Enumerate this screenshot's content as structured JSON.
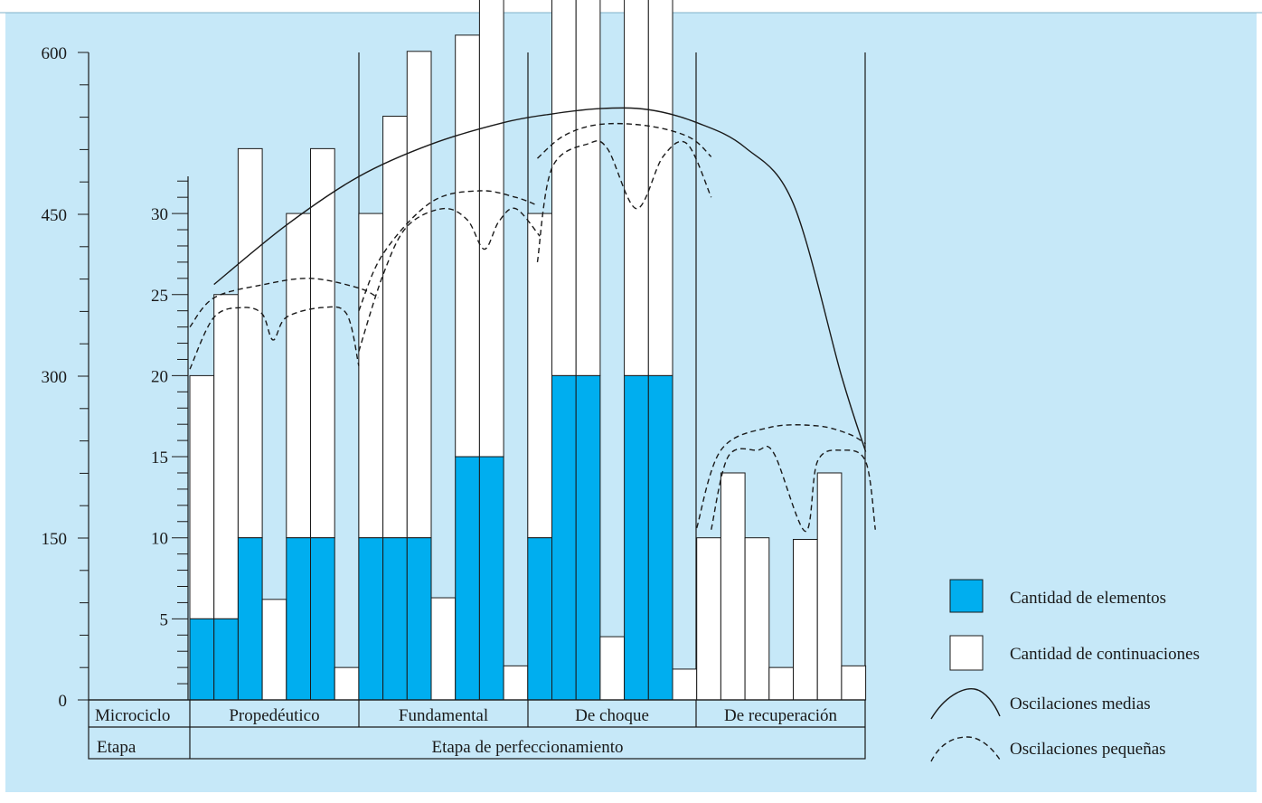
{
  "chart_data": {
    "type": "bar",
    "colors": {
      "background": "#c6e8f8",
      "elementos": "#00aeef",
      "continuaciones": "#ffffff",
      "stroke": "#1a1a1a"
    },
    "outer_axis": {
      "ylim": [
        0,
        600
      ],
      "ticks": [
        "0",
        "150",
        "300",
        "450",
        "600"
      ]
    },
    "inner_axis": {
      "ylim": [
        0,
        35
      ],
      "ticks": [
        "5",
        "10",
        "15",
        "20",
        "25",
        "30"
      ]
    },
    "table": {
      "row1_header": "Microciclo",
      "row2_header": "Etapa",
      "microcycles": [
        "Propedéutico",
        "Fundamental",
        "De choque",
        "De recuperación"
      ],
      "stage": "Etapa de perfeccionamiento"
    },
    "series": [
      {
        "name": "Cantidad de elementos",
        "values": [
          5,
          5,
          10,
          0,
          10,
          10,
          0,
          10,
          10,
          10,
          0,
          15,
          15,
          0,
          10,
          20,
          20,
          0,
          20,
          20,
          0,
          0,
          0,
          0,
          0,
          0,
          0,
          0
        ]
      },
      {
        "name": "Cantidad de continuaciones",
        "values": [
          15,
          20,
          24,
          6.2,
          20,
          24,
          2,
          20,
          26,
          30,
          6.3,
          26,
          30,
          2.1,
          20,
          34,
          30,
          3.9,
          30.3,
          34,
          1.9,
          10,
          14,
          10,
          2,
          9.9,
          14,
          2.1
        ]
      }
    ],
    "oscilaciones_medias": [
      [
        1,
        385
      ],
      [
        4,
        440
      ],
      [
        7,
        485
      ],
      [
        10,
        515
      ],
      [
        13,
        535
      ],
      [
        15,
        543
      ],
      [
        17,
        548
      ],
      [
        19,
        547
      ],
      [
        21,
        535
      ],
      [
        23,
        512
      ],
      [
        25,
        460
      ],
      [
        27,
        300
      ],
      [
        28,
        230
      ]
    ],
    "oscilaciones_pequenas": {
      "upper": [
        [
          [
            0,
            23
          ],
          [
            1,
            24.8
          ],
          [
            3,
            25.6
          ],
          [
            5,
            26
          ],
          [
            7,
            25.4
          ],
          [
            7.8,
            24.8
          ]
        ],
        [
          [
            7,
            24
          ],
          [
            8,
            27.5
          ],
          [
            10,
            30.7
          ],
          [
            12,
            31.4
          ],
          [
            13.5,
            31
          ],
          [
            14.4,
            30.5
          ]
        ],
        [
          [
            14.4,
            33.4
          ],
          [
            15.5,
            34.8
          ],
          [
            17,
            35.5
          ],
          [
            19,
            35.4
          ],
          [
            20.7,
            34.7
          ],
          [
            21.6,
            33.5
          ]
        ],
        [
          [
            21,
            10.6
          ],
          [
            22,
            15.4
          ],
          [
            24,
            16.8
          ],
          [
            26,
            16.9
          ],
          [
            27.3,
            16.4
          ],
          [
            28,
            15.8
          ]
        ]
      ],
      "lower": [
        [
          [
            0,
            20.4
          ],
          [
            1,
            23.6
          ],
          [
            2.2,
            24.2
          ],
          [
            3,
            23.8
          ],
          [
            3.45,
            22.2
          ],
          [
            4,
            23.6
          ],
          [
            5.5,
            24.2
          ],
          [
            6.5,
            23.8
          ],
          [
            7,
            20.6
          ]
        ],
        [
          [
            7,
            21.5
          ],
          [
            8,
            26.2
          ],
          [
            9,
            29.2
          ],
          [
            10.5,
            30.3
          ],
          [
            11.5,
            29.6
          ],
          [
            12.2,
            27.8
          ],
          [
            12.8,
            29.5
          ],
          [
            13.5,
            30.3
          ],
          [
            14.5,
            28.6
          ]
        ],
        [
          [
            14.4,
            27
          ],
          [
            15,
            32.8
          ],
          [
            16.5,
            34.3
          ],
          [
            17.3,
            34
          ],
          [
            18.5,
            30.3
          ],
          [
            19.6,
            33.5
          ],
          [
            20.6,
            34.3
          ],
          [
            21.6,
            31
          ]
        ],
        [
          [
            21.6,
            10.5
          ],
          [
            22.3,
            15
          ],
          [
            23.5,
            15.4
          ],
          [
            24.2,
            15.2
          ],
          [
            25.5,
            10.4
          ],
          [
            26,
            14.7
          ],
          [
            27,
            15.4
          ],
          [
            28,
            14.7
          ],
          [
            28.4,
            10.5
          ]
        ]
      ]
    },
    "legend": [
      {
        "label": "Cantidad de elementos",
        "type": "box-blue"
      },
      {
        "label": "Cantidad de continuaciones",
        "type": "box-white"
      },
      {
        "label": "Oscilaciones medias",
        "type": "solid-arc"
      },
      {
        "label": "Oscilaciones pequeñas",
        "type": "dashed-arc"
      }
    ]
  }
}
